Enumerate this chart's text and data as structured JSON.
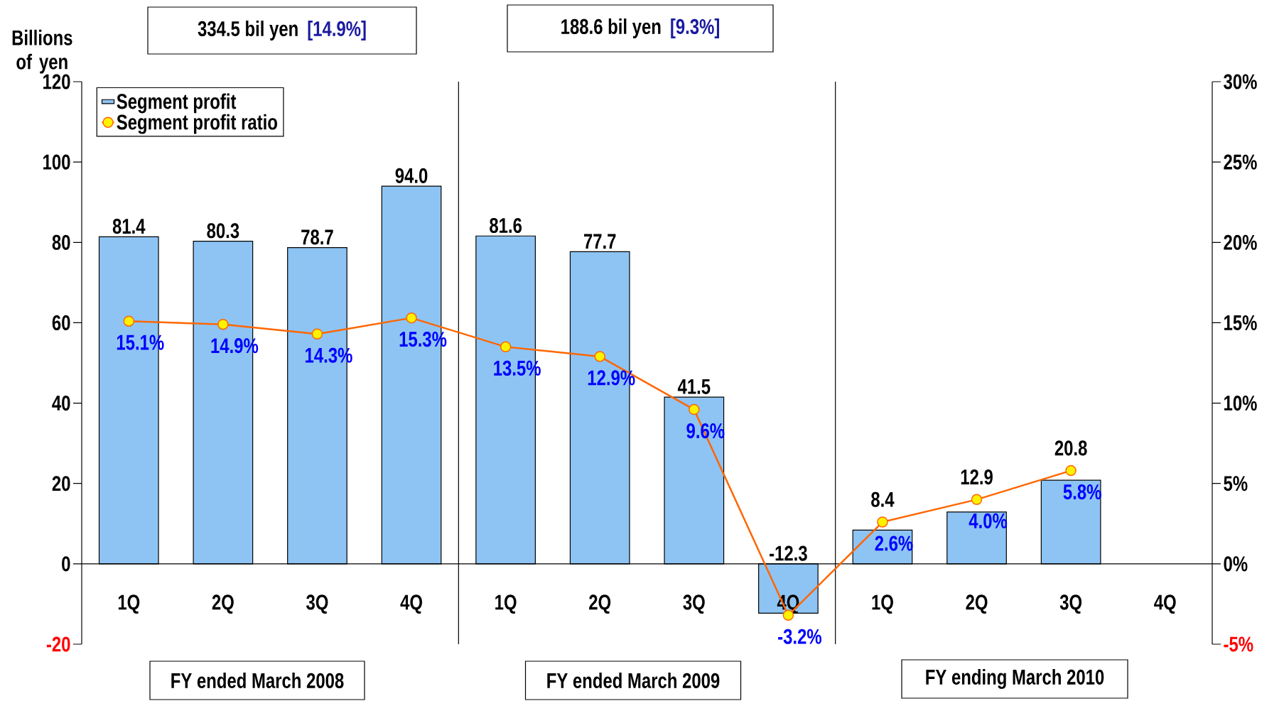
{
  "chart_data": {
    "type": "bar",
    "ylabel": "Billions of yen",
    "categories": [
      "1Q",
      "2Q",
      "3Q",
      "4Q",
      "1Q",
      "2Q",
      "3Q",
      "4Q",
      "1Q",
      "2Q",
      "3Q",
      "4Q"
    ],
    "series": [
      {
        "name": "Segment profit",
        "type": "bar",
        "color": "#8ec4f4",
        "values": [
          81.4,
          80.3,
          78.7,
          94.0,
          81.6,
          77.7,
          41.5,
          -12.3,
          8.4,
          12.9,
          20.8,
          null
        ],
        "value_labels": [
          "81.4",
          "80.3",
          "78.7",
          "94.0",
          "81.6",
          "77.7",
          "41.5",
          "-12.3",
          "8.4",
          "12.9",
          "20.8",
          null
        ]
      },
      {
        "name": "Segment profit ratio",
        "type": "line",
        "axis": "y2",
        "color": "#ff6600",
        "marker": "circle",
        "values": [
          15.1,
          14.9,
          14.3,
          15.3,
          13.5,
          12.9,
          9.6,
          -3.2,
          2.6,
          4.0,
          5.8,
          null
        ],
        "value_labels": [
          "15.1%",
          "14.9%",
          "14.3%",
          "15.3%",
          "13.5%",
          "12.9%",
          "9.6%",
          "-3.2%",
          "2.6%",
          "4.0%",
          "5.8%",
          null
        ]
      }
    ],
    "ylim": [
      -20,
      120
    ],
    "yticks": [
      -20,
      0,
      20,
      40,
      60,
      80,
      100,
      120
    ],
    "y2lim": [
      -5,
      30
    ],
    "y2ticks": [
      {
        "value": -5,
        "label": "-5%"
      },
      {
        "value": 0,
        "label": "0%"
      },
      {
        "value": 5,
        "label": "5%"
      },
      {
        "value": 10,
        "label": "10%"
      },
      {
        "value": 15,
        "label": "15%"
      },
      {
        "value": 20,
        "label": "20%"
      },
      {
        "value": 25,
        "label": "25%"
      },
      {
        "value": 30,
        "label": "30%"
      }
    ],
    "legend": "top left",
    "annotations": [
      "334.5 bil yen",
      "[14.9%]",
      "188.6 bil yen",
      "[9.3%]",
      "FY ended March 2008",
      "FY ended March 2009",
      "FY ending March 2010"
    ]
  }
}
